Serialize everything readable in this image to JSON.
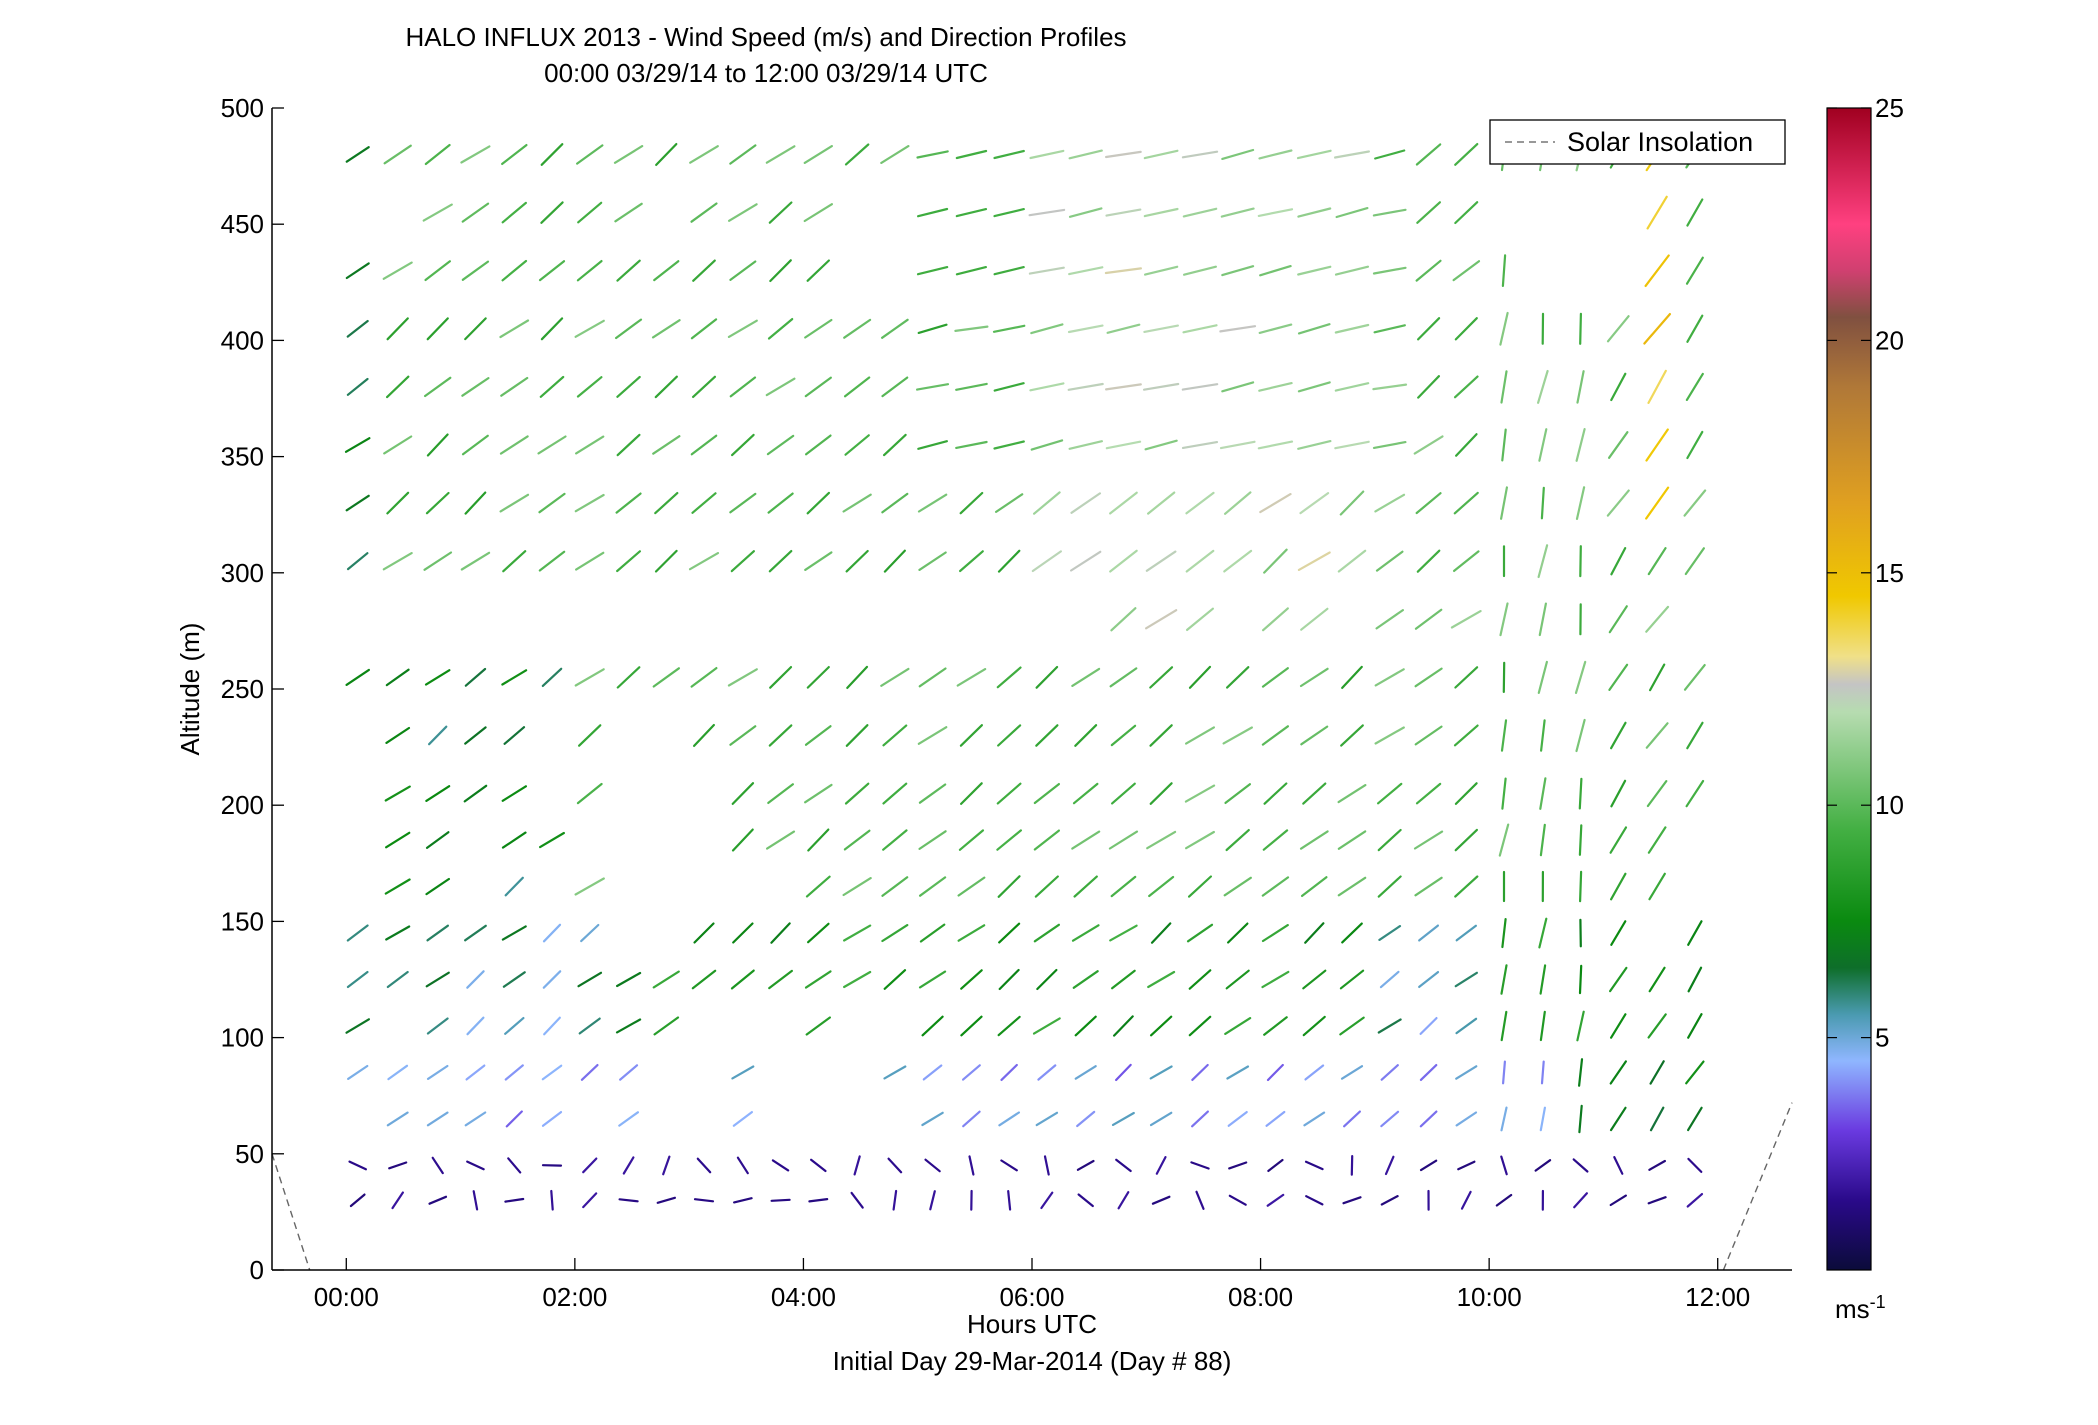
{
  "chart_data": {
    "type": "quiver",
    "title": "HALO INFLUX 2013 - Wind Speed (m/s) and Direction Profiles",
    "subtitle": "00:00 03/29/14 to 12:00 03/29/14  UTC",
    "xlabel": "Hours UTC",
    "xlabel2": "Initial Day 29-Mar-2014 (Day # 88)",
    "ylabel": "Altitude (m)",
    "xlim": [
      -0.65,
      12.65
    ],
    "ylim": [
      0,
      500
    ],
    "x_ticks": [
      0,
      2,
      4,
      6,
      8,
      10,
      12
    ],
    "x_tick_labels": [
      "00:00",
      "02:00",
      "04:00",
      "06:00",
      "08:00",
      "10:00",
      "12:00"
    ],
    "y_ticks": [
      0,
      50,
      100,
      150,
      200,
      250,
      300,
      350,
      400,
      450,
      500
    ],
    "y_tick_labels": [
      "0",
      "50",
      "100",
      "150",
      "200",
      "250",
      "300",
      "350",
      "400",
      "450",
      "500"
    ],
    "legend": {
      "entries": [
        "Solar Insolation"
      ],
      "placement": "top-right"
    },
    "colorbar": {
      "range": [
        0,
        25
      ],
      "ticks": [
        5,
        10,
        15,
        20,
        25
      ],
      "tick_labels": [
        "5",
        "10",
        "15",
        "20",
        "25"
      ],
      "unit_label": "ms",
      "unit_exponent": "-1",
      "stops": [
        {
          "v": 0,
          "c": "#0b0b3a"
        },
        {
          "v": 1.5,
          "c": "#2a0a8a"
        },
        {
          "v": 3,
          "c": "#6a3ae0"
        },
        {
          "v": 4.5,
          "c": "#8fb6ff"
        },
        {
          "v": 5.5,
          "c": "#4a9ab0"
        },
        {
          "v": 6.5,
          "c": "#0e6e2a"
        },
        {
          "v": 7.5,
          "c": "#0a8a10"
        },
        {
          "v": 9.5,
          "c": "#44b044"
        },
        {
          "v": 12,
          "c": "#b6dcb0"
        },
        {
          "v": 12.6,
          "c": "#c4c4c4"
        },
        {
          "v": 13.2,
          "c": "#f0e088"
        },
        {
          "v": 14.5,
          "c": "#f0c800"
        },
        {
          "v": 16.5,
          "c": "#e0a020"
        },
        {
          "v": 19,
          "c": "#b07838"
        },
        {
          "v": 20.5,
          "c": "#805040"
        },
        {
          "v": 21.5,
          "c": "#d04070"
        },
        {
          "v": 22.5,
          "c": "#ff4080"
        },
        {
          "v": 25,
          "c": "#a00020"
        }
      ]
    },
    "solar_insolation": [
      {
        "x": -0.65,
        "y": 50
      },
      {
        "x": -0.32,
        "y": 0
      },
      {
        "x": 12.05,
        "y": 0
      },
      {
        "x": 12.65,
        "y": 72
      }
    ],
    "altitudes": [
      30,
      45,
      65,
      85,
      105,
      125,
      145,
      165,
      185,
      205,
      230,
      255,
      280,
      305,
      330,
      355,
      380,
      405,
      430,
      455,
      480
    ],
    "times": [
      0.1,
      0.45,
      0.8,
      1.13,
      1.47,
      1.8,
      2.13,
      2.47,
      2.8,
      3.13,
      3.47,
      3.8,
      4.13,
      4.47,
      4.8,
      5.13,
      5.47,
      5.8,
      6.13,
      6.47,
      6.8,
      7.13,
      7.47,
      7.8,
      8.13,
      8.47,
      8.8,
      9.13,
      9.47,
      9.8,
      10.13,
      10.47,
      10.8,
      11.13,
      11.47,
      11.8
    ],
    "gaps": [
      [
        19,
        0
      ],
      [
        19,
        1
      ],
      [
        19,
        8
      ],
      [
        19,
        13
      ],
      [
        19,
        14
      ],
      [
        19,
        30
      ],
      [
        19,
        31
      ],
      [
        19,
        32
      ],
      [
        19,
        33
      ],
      [
        18,
        13
      ],
      [
        18,
        14
      ],
      [
        18,
        31
      ],
      [
        18,
        32
      ],
      [
        18,
        33
      ],
      [
        12,
        0
      ],
      [
        12,
        1
      ],
      [
        12,
        2
      ],
      [
        12,
        3
      ],
      [
        12,
        4
      ],
      [
        12,
        5
      ],
      [
        12,
        6
      ],
      [
        12,
        7
      ],
      [
        12,
        8
      ],
      [
        12,
        9
      ],
      [
        12,
        10
      ],
      [
        12,
        11
      ],
      [
        12,
        12
      ],
      [
        12,
        13
      ],
      [
        12,
        14
      ],
      [
        12,
        15
      ],
      [
        12,
        16
      ],
      [
        12,
        17
      ],
      [
        12,
        18
      ],
      [
        12,
        19
      ],
      [
        12,
        23
      ],
      [
        12,
        26
      ],
      [
        12,
        35
      ],
      [
        10,
        0
      ],
      [
        10,
        5
      ],
      [
        10,
        7
      ],
      [
        10,
        8
      ],
      [
        9,
        0
      ],
      [
        9,
        5
      ],
      [
        9,
        7
      ],
      [
        9,
        8
      ],
      [
        9,
        9
      ],
      [
        8,
        0
      ],
      [
        8,
        3
      ],
      [
        8,
        6
      ],
      [
        8,
        7
      ],
      [
        8,
        8
      ],
      [
        8,
        9
      ],
      [
        8,
        35
      ],
      [
        7,
        0
      ],
      [
        7,
        3
      ],
      [
        7,
        5
      ],
      [
        7,
        7
      ],
      [
        7,
        8
      ],
      [
        7,
        9
      ],
      [
        7,
        10
      ],
      [
        7,
        11
      ],
      [
        7,
        35
      ],
      [
        6,
        7
      ],
      [
        6,
        8
      ],
      [
        6,
        34
      ],
      [
        4,
        1
      ],
      [
        4,
        9
      ],
      [
        4,
        10
      ],
      [
        4,
        11
      ],
      [
        4,
        13
      ],
      [
        4,
        14
      ],
      [
        3,
        8
      ],
      [
        3,
        9
      ],
      [
        3,
        11
      ],
      [
        3,
        12
      ],
      [
        3,
        13
      ],
      [
        2,
        0
      ],
      [
        2,
        6
      ],
      [
        2,
        8
      ],
      [
        2,
        9
      ],
      [
        2,
        11
      ],
      [
        2,
        12
      ],
      [
        2,
        13
      ],
      [
        2,
        14
      ]
    ]
  }
}
